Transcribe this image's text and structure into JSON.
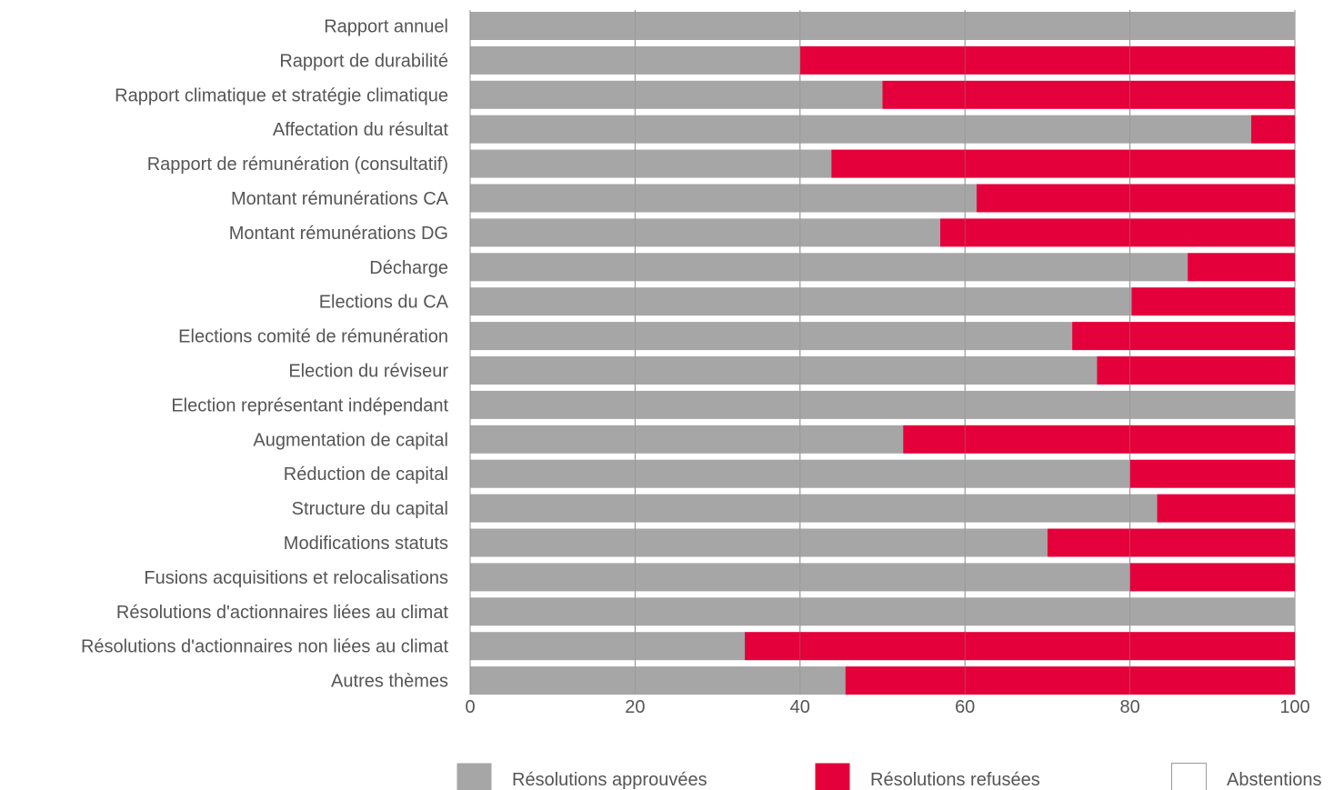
{
  "colors": {
    "approved": "#a6a6a6",
    "refused": "#e4003a",
    "abstentions": "#ffffff",
    "grid": "#8c8c8c"
  },
  "chart_data": {
    "type": "bar",
    "orientation": "horizontal",
    "stacked": true,
    "title": "",
    "xlabel": "",
    "ylabel": "",
    "xlim": [
      0,
      100
    ],
    "xticks": [
      0,
      20,
      40,
      60,
      80,
      100
    ],
    "grid": true,
    "legend_position": "bottom",
    "categories": [
      "Rapport annuel",
      "Rapport de durabilité",
      "Rapport climatique et stratégie climatique",
      "Affectation du résultat",
      "Rapport de rémunération (consultatif)",
      "Montant rémunérations CA",
      "Montant rémunérations DG",
      "Décharge",
      "Elections du CA",
      "Elections comité de rémunération",
      "Election du réviseur",
      "Election représentant indépendant",
      "Augmentation de capital",
      "Réduction de capital",
      "Structure du capital",
      "Modifications statuts",
      "Fusions acquisitions et relocalisations",
      "Résolutions d'actionnaires liées au climat",
      "Résolutions d'actionnaires non liées au climat",
      "Autres thèmes"
    ],
    "series": [
      {
        "name": "Résolutions approuvées",
        "color": "#a6a6a6",
        "values": [
          100,
          40,
          50,
          94.7,
          43.8,
          61.4,
          57,
          87,
          80.2,
          73,
          76,
          100,
          52.5,
          80,
          83.3,
          70,
          80,
          100,
          33.3,
          45.5
        ]
      },
      {
        "name": "Résolutions refusées",
        "color": "#e4003a",
        "values": [
          0,
          60,
          50,
          5.3,
          56.2,
          38.6,
          43,
          13,
          19.8,
          27,
          24,
          0,
          47.5,
          20,
          16.7,
          30,
          20,
          0,
          66.7,
          54.5
        ]
      },
      {
        "name": "Abstentions",
        "color": "#ffffff",
        "values": [
          0,
          0,
          0,
          0,
          0,
          0,
          0,
          0,
          0,
          0,
          0,
          0,
          0,
          0,
          0,
          0,
          0,
          0,
          0,
          0
        ]
      }
    ]
  }
}
